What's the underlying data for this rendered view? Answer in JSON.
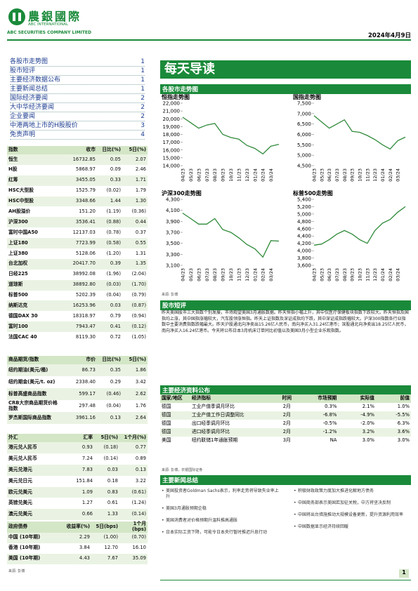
{
  "header": {
    "company_cn": "農銀國際",
    "company_en1": "ABC INTERNATIONAL",
    "company_en2": "ABC SECURITIES COMPANY LIMITED",
    "date": "2024年4月9日"
  },
  "toc": [
    {
      "title": "各股市走势图",
      "page": "1"
    },
    {
      "title": "股市短评",
      "page": "1"
    },
    {
      "title": "主要经济数据公布",
      "page": "1"
    },
    {
      "title": "主要新闻总结",
      "page": "1"
    },
    {
      "title": "国际经济要闻",
      "page": "2"
    },
    {
      "title": "大中华经济要闻",
      "page": "2"
    },
    {
      "title": "企业要闻",
      "page": "2"
    },
    {
      "title": "中港两地上市的H股股价",
      "page": "3"
    },
    {
      "title": "免责声明",
      "page": "4"
    }
  ],
  "tables": {
    "indices": {
      "header": [
        "指数",
        "收市",
        "日比(%)",
        "5日(%)"
      ],
      "rows": [
        [
          "恒生",
          "16732.85",
          "0.05",
          "2.07"
        ],
        [
          "H股",
          "5868.97",
          "0.09",
          "2.46"
        ],
        [
          "红筹",
          "3455.05",
          "0.33",
          "1.71"
        ],
        [
          "HSC大型股",
          "1525.79",
          "(0.02)",
          "1.79"
        ],
        [
          "HSC中型股",
          "3348.66",
          "1.44",
          "1.30"
        ],
        [
          "AH股溢价",
          "151.20",
          "(1.19)",
          "(0.36)"
        ],
        [
          "沪深300",
          "3536.41",
          "(0.88)",
          "0.44"
        ],
        [
          "富时中国A50",
          "12137.03",
          "(0.78)",
          "0.37"
        ],
        [
          "上证180",
          "7723.99",
          "(0.58)",
          "0.55"
        ],
        [
          "上证380",
          "5128.06",
          "(1.20)",
          "1.31"
        ],
        [
          "台北加权",
          "20417.70",
          "0.39",
          "1.35"
        ],
        [
          "日经225",
          "38992.08",
          "(1.96)",
          "(2.04)"
        ],
        [
          "道琼斯",
          "38892.80",
          "(0.03)",
          "(1.70)"
        ],
        [
          "标普500",
          "5202.39",
          "(0.04)",
          "(0.79)"
        ],
        [
          "纳斯达克",
          "16253.96",
          "0.03",
          "(0.87)"
        ],
        [
          "德国DAX 30",
          "18318.97",
          "0.79",
          "(0.94)"
        ],
        [
          "富时100",
          "7943.47",
          "0.41",
          "(0.12)"
        ],
        [
          "法国CAC 40",
          "8119.30",
          "0.72",
          "(1.05)"
        ]
      ]
    },
    "commodities": {
      "header": [
        "商品期货/指数",
        "市价",
        "日比(%)",
        "5日(%)"
      ],
      "rows": [
        [
          "纽约期油(美元/桶)",
          "86.73",
          "0.35",
          "1.86"
        ],
        [
          "纽约期金(美元/t. oz)",
          "2338.40",
          "0.29",
          "3.42"
        ],
        [
          "标普高盛商品指数",
          "599.17",
          "(0.46)",
          "2.62"
        ],
        [
          "CRB大宗商品期货价格指数",
          "297.48",
          "(0.04)",
          "1.76"
        ],
        [
          "罗杰斯国际商品指数",
          "3961.16",
          "0.13",
          "2.64"
        ]
      ]
    },
    "fx": {
      "header": [
        "外汇",
        "汇率",
        "5日(%)",
        "1个月(%)"
      ],
      "rows": [
        [
          "港元兑人民币",
          "0.93",
          "(0.18)",
          "0.77"
        ],
        [
          "美元兑人民币",
          "7.24",
          "(0.14)",
          "0.89"
        ],
        [
          "美元兑港元",
          "7.83",
          "0.03",
          "0.13"
        ],
        [
          "美元兑日元",
          "151.84",
          "0.18",
          "3.22"
        ],
        [
          "欧元兑美元",
          "1.09",
          "0.83",
          "(0.61)"
        ],
        [
          "英镑兑美元",
          "1.27",
          "0.61",
          "(1.24)"
        ],
        [
          "澳元兑美元",
          "0.66",
          "1.33",
          "(0.14)"
        ]
      ]
    },
    "bonds": {
      "header": [
        "政府债券",
        "收益率(%)",
        "5日(bps)",
        "1个月(bps)"
      ],
      "rows": [
        [
          "中国 (10年期)",
          "2.29",
          "(1.00)",
          "(0.70)"
        ],
        [
          "香港 (10年期)",
          "3.84",
          "12.70",
          "16.10"
        ],
        [
          "美国 (10年期)",
          "4.43",
          "7.67",
          "35.09"
        ]
      ]
    },
    "source": "来源: 彭博"
  },
  "banner": "每天导读",
  "charts_section": "各股市走势图",
  "chart_data": [
    {
      "type": "line",
      "title": "恒指走势图",
      "color": "#2f8a3a",
      "categories": [
        "04/23",
        "05/23",
        "06/23",
        "07/23",
        "08/23",
        "09/23",
        "10/23",
        "11/23",
        "12/23",
        "01/24",
        "02/24",
        "03/24",
        null
      ],
      "values": [
        20200,
        19500,
        18800,
        19200,
        19400,
        18000,
        17600,
        17400,
        16600,
        16200,
        15500,
        16500,
        16730
      ],
      "ylim": [
        14000,
        22000
      ],
      "yticks": [
        {
          "value": 14000,
          "label": "14,000"
        },
        {
          "value": 15000,
          "label": "15,000"
        },
        {
          "value": 16000,
          "label": "16,000"
        },
        {
          "value": 17000,
          "label": "17,000"
        },
        {
          "value": 18000,
          "label": "18,000"
        },
        {
          "value": 19000,
          "label": "19,000"
        },
        {
          "value": 20000,
          "label": "20,000"
        },
        {
          "value": 21000,
          "label": "21,000"
        },
        {
          "value": 22000,
          "label": "22,000"
        }
      ]
    },
    {
      "type": "line",
      "title": "国指走势图",
      "color": "#2f8a3a",
      "categories": [
        "04/23",
        "05/23",
        "06/23",
        "07/23",
        "08/23",
        "09/23",
        "10/23",
        "11/23",
        "12/23",
        "01/24",
        "02/24",
        "03/24",
        null
      ],
      "values": [
        6900,
        6600,
        6300,
        6500,
        6700,
        6150,
        6100,
        5950,
        5750,
        5500,
        5300,
        5700,
        5870
      ],
      "ylim": [
        4500,
        7500
      ],
      "yticks": [
        {
          "value": 4500,
          "label": "4,500"
        },
        {
          "value": 5000,
          "label": "5,000"
        },
        {
          "value": 5500,
          "label": "5,500"
        },
        {
          "value": 6000,
          "label": "6,000"
        },
        {
          "value": 6500,
          "label": "6,500"
        },
        {
          "value": 7000,
          "label": "7,000"
        },
        {
          "value": 7500,
          "label": "7,500"
        }
      ]
    },
    {
      "type": "line",
      "title": "沪深300走势图",
      "color": "#2f8a3a",
      "categories": [
        "04/23",
        "05/23",
        "06/23",
        "07/23",
        "08/23",
        "09/23",
        "10/23",
        "11/23",
        "12/23",
        "01/24",
        "02/24",
        "03/24",
        null
      ],
      "values": [
        4050,
        3950,
        3850,
        3850,
        3950,
        3750,
        3700,
        3600,
        3480,
        3400,
        3250,
        3550,
        3540
      ],
      "ylim": [
        3100,
        4300
      ],
      "yticks": [
        {
          "value": 3100,
          "label": "3,100"
        },
        {
          "value": 3300,
          "label": "3,300"
        },
        {
          "value": 3500,
          "label": "3,500"
        },
        {
          "value": 3700,
          "label": "3,700"
        },
        {
          "value": 3900,
          "label": "3,900"
        },
        {
          "value": 4100,
          "label": "4,100"
        },
        {
          "value": 4300,
          "label": "4,300"
        }
      ]
    },
    {
      "type": "line",
      "title": "标普500走势图",
      "color": "#2f8a3a",
      "categories": [
        "04/23",
        "05/23",
        "06/23",
        "07/23",
        "08/23",
        "09/23",
        "10/23",
        "11/23",
        "12/23",
        "01/24",
        "02/24",
        "03/24",
        null
      ],
      "values": [
        4150,
        4180,
        4300,
        4450,
        4550,
        4450,
        4300,
        4200,
        4550,
        4750,
        4850,
        5050,
        5200
      ],
      "ylim": [
        3600,
        5400
      ],
      "yticks": [
        {
          "value": 3600,
          "label": "3,600"
        },
        {
          "value": 3800,
          "label": "3,800"
        },
        {
          "value": 4000,
          "label": "4,000"
        },
        {
          "value": 4200,
          "label": "4,200"
        },
        {
          "value": 4400,
          "label": "4,400"
        },
        {
          "value": 4600,
          "label": "4,600"
        },
        {
          "value": 4800,
          "label": "4,800"
        },
        {
          "value": 5000,
          "label": "5,000"
        },
        {
          "value": 5200,
          "label": "5,200"
        },
        {
          "value": 5400,
          "label": "5,400"
        }
      ]
    }
  ],
  "charts_source": "来源: 彭博",
  "commentary": {
    "title": "股市短评",
    "text": "昨天美国股市三大指数个别发展，市场观望美国3月通胀数据。昨天恒指小幅上升，其中仅医疗保健板块指数下跌较大。昨天恒指及国指均上涨，其中国指涨幅较大，汽车股领涨恒指。昨天上证指数及深证成指均下跌，其中深证成指跌幅较大。沪深300指数各行业指数中主要消费指数跌幅最大。昨天沪股通北向净卖出15.26亿人民币，南向净买入31.24亿港币；深股通北向净卖出18.25亿人民币，南向净买入16.24亿港币。今天将公布日本3月机床订单同比初值以及美国3月小型企业乐观指数。"
  },
  "economic": {
    "title": "主要经济资料公布",
    "header": [
      "国家/地区",
      "经济指标",
      "时间",
      "市场预期",
      "实际值",
      "前值"
    ],
    "rows": [
      [
        "德国",
        "工业产值季调月环比",
        "2月",
        "0.3%",
        "2.1%",
        "1.0%"
      ],
      [
        "德国",
        "工业产值工作日调整同比",
        "2月",
        "-6.8%",
        "-4.9%",
        "-5.5%"
      ],
      [
        "德国",
        "出口经季调月环比",
        "2月",
        "-0.5%",
        "-2.0%",
        "6.3%"
      ],
      [
        "德国",
        "进口经季调月环比",
        "2月",
        "-1.2%",
        "3.2%",
        "3.6%"
      ],
      [
        "美国",
        "纽约联储1年通胀预期",
        "3月",
        "NA",
        "3.0%",
        "3.0%"
      ]
    ],
    "source": "来源: 彭博，农银国际证券"
  },
  "news": {
    "title": "主要新闻总结",
    "left": [
      "美国投资者Goldman Sachs表示，利率走势将导致失业率上升",
      "美国3月通胀预期企稳",
      "美国消费者对价格预期升温料推高通胀",
      "日本实际工资下降，可能令日本央行暂时推迟升息行动"
    ],
    "right": [
      "积极财政政策力度加大推进化解地方债务",
      "中国商务部表示美国若加征关税，中方将坚决反制",
      "中国将出台措施推动大规模设备更新，提升资源利用效率",
      "中国数据显示经济持续回暖"
    ]
  },
  "page_number": "1"
}
